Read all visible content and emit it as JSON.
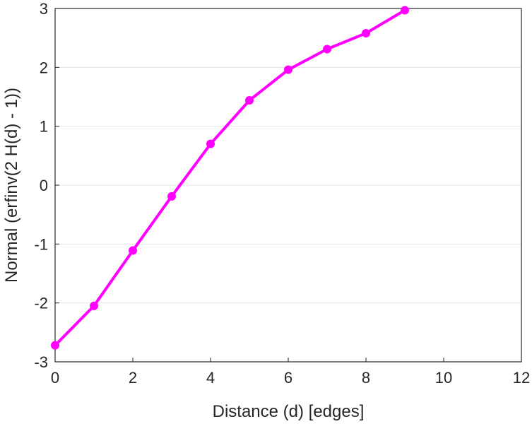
{
  "chart_data": {
    "type": "line",
    "title": "",
    "xlabel": "Distance (d) [edges]",
    "ylabel": "Normal (erfinv(2 H(d) - 1))",
    "xlim": [
      0,
      12
    ],
    "ylim": [
      -3,
      3
    ],
    "xticks": [
      "0",
      "2",
      "4",
      "6",
      "8",
      "10",
      "12"
    ],
    "yticks": [
      "-3",
      "-2",
      "-1",
      "0",
      "1",
      "2",
      "3"
    ],
    "grid": "horizontal",
    "legend": "none",
    "series": [
      {
        "color": "#ff00ff",
        "marker": "circle",
        "x": [
          0,
          1,
          2,
          3,
          4,
          5,
          6,
          7,
          8,
          9
        ],
        "y": [
          -2.72,
          -2.05,
          -1.11,
          -0.19,
          0.7,
          1.44,
          1.96,
          2.31,
          2.58,
          2.97
        ]
      }
    ]
  }
}
